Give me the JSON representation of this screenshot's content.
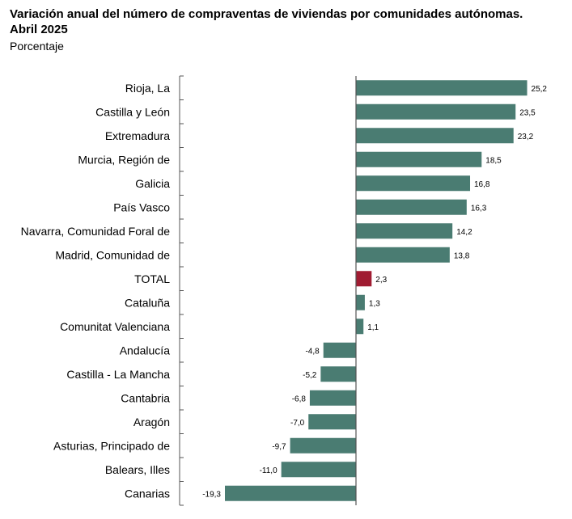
{
  "title_line1": "Variación anual del número de compraventas de viviendas por comunidades autónomas.",
  "title_line2": "Abril 2025",
  "subtitle": "Porcentaje",
  "colors": {
    "bar": "#4a7c72",
    "highlight": "#a01c32",
    "axis": "#555555"
  },
  "chart_data": {
    "type": "bar",
    "orientation": "horizontal",
    "categories": [
      "Rioja, La",
      "Castilla y León",
      "Extremadura",
      "Murcia, Región de",
      "Galicia",
      "País Vasco",
      "Navarra, Comunidad Foral de",
      "Madrid, Comunidad de",
      "TOTAL",
      "Cataluña",
      "Comunitat Valenciana",
      "Andalucía",
      "Castilla - La Mancha",
      "Cantabria",
      "Aragón",
      "Asturias, Principado de",
      "Balears, Illes",
      "Canarias"
    ],
    "values": [
      25.2,
      23.5,
      23.2,
      18.5,
      16.8,
      16.3,
      14.2,
      13.8,
      2.3,
      1.3,
      1.1,
      -4.8,
      -5.2,
      -6.8,
      -7.0,
      -9.7,
      -11.0,
      -19.3
    ],
    "value_labels": [
      "25,2",
      "23,5",
      "23,2",
      "18,5",
      "16,8",
      "16,3",
      "14,2",
      "13,8",
      "2,3",
      "1,3",
      "1,1",
      "-4,8",
      "-5,2",
      "-6,8",
      "-7,0",
      "-9,7",
      "-11,0",
      "-19,3"
    ],
    "highlight_category": "TOTAL",
    "xlim": [
      -19.3,
      25.2
    ],
    "grid": false,
    "legend": "none"
  }
}
